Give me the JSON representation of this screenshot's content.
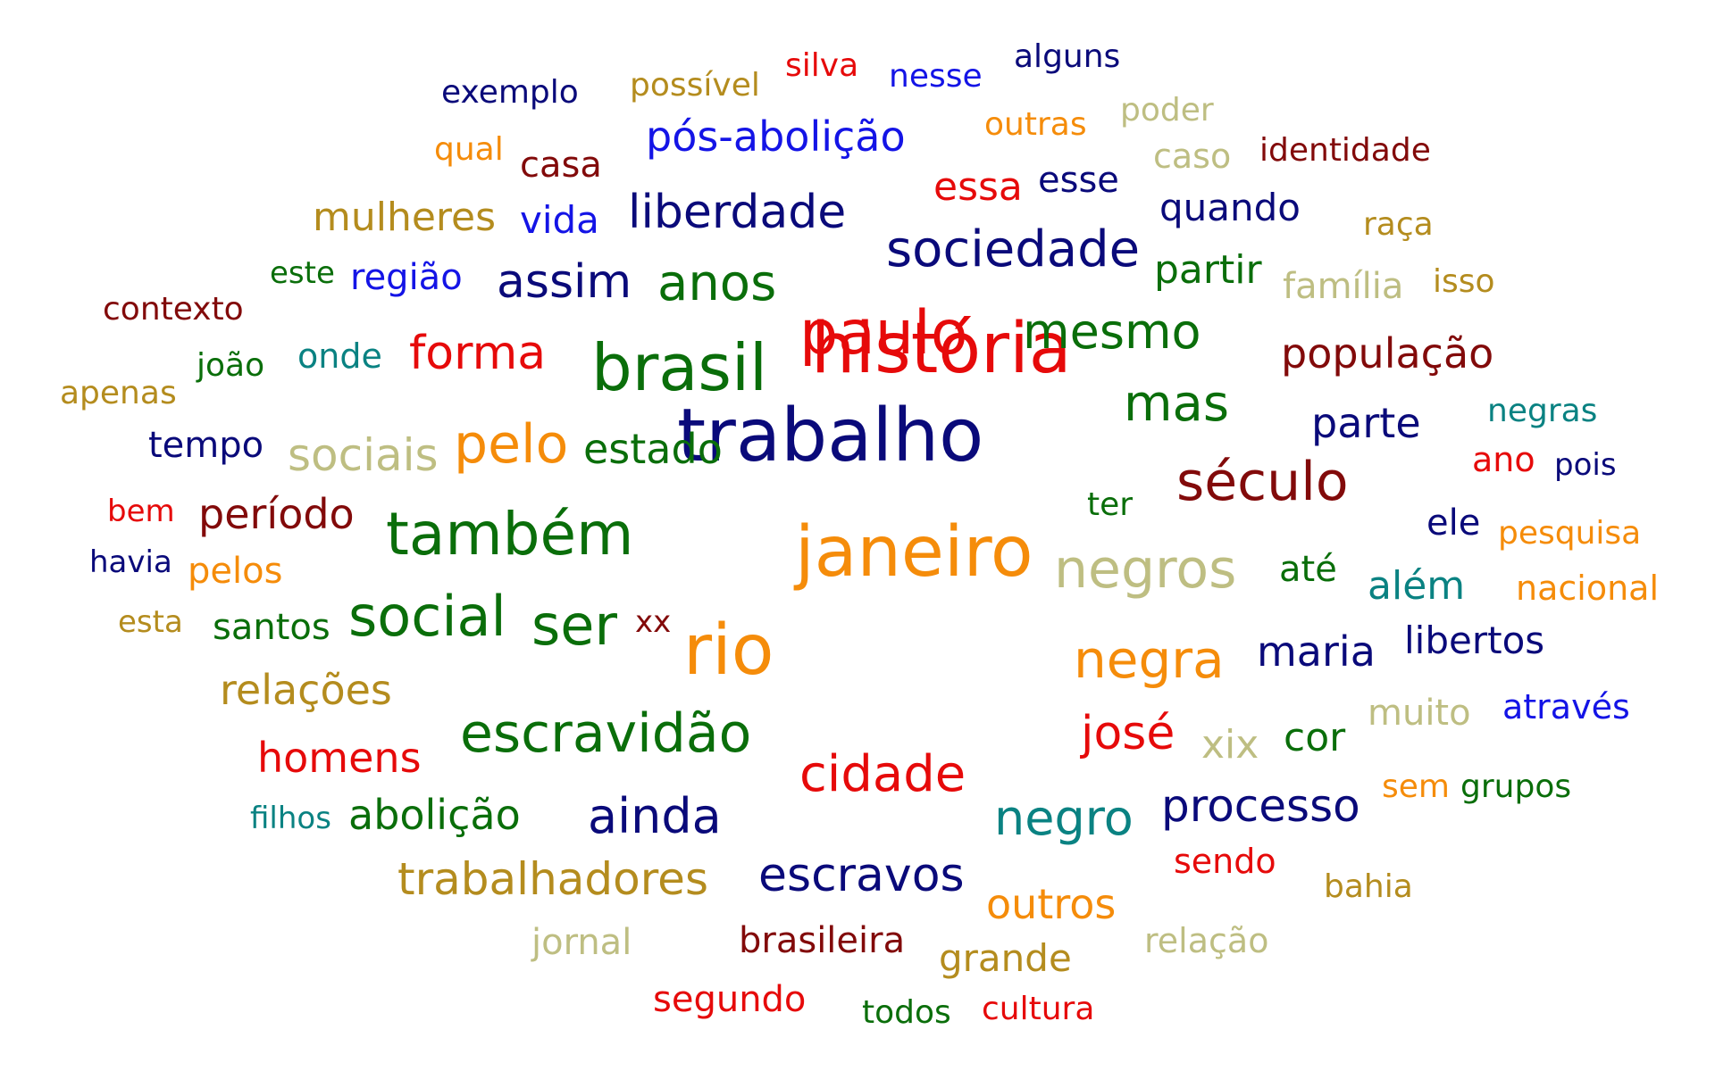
{
  "palette": {
    "navy": "#0a0a7a",
    "blue": "#1414e6",
    "red": "#e60a0a",
    "darkred": "#820a0a",
    "green": "#0a6e0a",
    "teal": "#0a8282",
    "orange": "#f58c0a",
    "gold": "#b48c1e",
    "khaki": "#bebe82"
  },
  "words": [
    {
      "text": "trabalho",
      "color": "navy"
    },
    {
      "text": "história",
      "color": "red"
    },
    {
      "text": "janeiro",
      "color": "orange"
    },
    {
      "text": "brasil",
      "color": "green"
    },
    {
      "text": "paulo",
      "color": "red"
    },
    {
      "text": "também",
      "color": "green"
    },
    {
      "text": "rio",
      "color": "orange"
    },
    {
      "text": "negros",
      "color": "khaki"
    },
    {
      "text": "século",
      "color": "darkred"
    },
    {
      "text": "escravidão",
      "color": "green"
    },
    {
      "text": "ser",
      "color": "green"
    },
    {
      "text": "negra",
      "color": "orange"
    },
    {
      "text": "sociedade",
      "color": "navy"
    },
    {
      "text": "mas",
      "color": "green"
    },
    {
      "text": "mesmo",
      "color": "green"
    },
    {
      "text": "social",
      "color": "green"
    },
    {
      "text": "cidade",
      "color": "red"
    },
    {
      "text": "negro",
      "color": "teal"
    },
    {
      "text": "ainda",
      "color": "navy"
    },
    {
      "text": "anos",
      "color": "green"
    },
    {
      "text": "pelo",
      "color": "orange"
    },
    {
      "text": "liberdade",
      "color": "navy"
    },
    {
      "text": "josé",
      "color": "red"
    },
    {
      "text": "processo",
      "color": "navy"
    },
    {
      "text": "trabalhadores",
      "color": "gold"
    },
    {
      "text": "escravos",
      "color": "navy"
    },
    {
      "text": "assim",
      "color": "navy"
    },
    {
      "text": "forma",
      "color": "red"
    },
    {
      "text": "população",
      "color": "darkred"
    },
    {
      "text": "parte",
      "color": "navy"
    },
    {
      "text": "maria",
      "color": "navy"
    },
    {
      "text": "estado",
      "color": "green"
    },
    {
      "text": "sociais",
      "color": "khaki"
    },
    {
      "text": "período",
      "color": "darkred"
    },
    {
      "text": "homens",
      "color": "red"
    },
    {
      "text": "relações",
      "color": "gold"
    },
    {
      "text": "abolição",
      "color": "green"
    },
    {
      "text": "pós-abolição",
      "color": "blue"
    },
    {
      "text": "partir",
      "color": "green"
    },
    {
      "text": "mulheres",
      "color": "gold"
    },
    {
      "text": "libertos",
      "color": "navy"
    },
    {
      "text": "quando",
      "color": "navy"
    },
    {
      "text": "outros",
      "color": "orange"
    },
    {
      "text": "além",
      "color": "teal"
    },
    {
      "text": "brasileira",
      "color": "darkred"
    },
    {
      "text": "grande",
      "color": "gold"
    },
    {
      "text": "cor",
      "color": "green"
    },
    {
      "text": "xix",
      "color": "khaki"
    },
    {
      "text": "essa",
      "color": "red"
    },
    {
      "text": "esse",
      "color": "navy"
    },
    {
      "text": "casa",
      "color": "darkred"
    },
    {
      "text": "vida",
      "color": "blue"
    },
    {
      "text": "região",
      "color": "blue"
    },
    {
      "text": "família",
      "color": "khaki"
    },
    {
      "text": "segundo",
      "color": "red"
    },
    {
      "text": "muito",
      "color": "khaki"
    },
    {
      "text": "através",
      "color": "blue"
    },
    {
      "text": "onde",
      "color": "teal"
    },
    {
      "text": "tempo",
      "color": "navy"
    },
    {
      "text": "pelos",
      "color": "orange"
    },
    {
      "text": "santos",
      "color": "green"
    },
    {
      "text": "identidade",
      "color": "darkred"
    },
    {
      "text": "relação",
      "color": "khaki"
    },
    {
      "text": "jornal",
      "color": "khaki"
    },
    {
      "text": "ele",
      "color": "navy"
    },
    {
      "text": "até",
      "color": "green"
    },
    {
      "text": "pesquisa",
      "color": "orange"
    },
    {
      "text": "nacional",
      "color": "orange"
    },
    {
      "text": "sendo",
      "color": "red"
    },
    {
      "text": "cultura",
      "color": "red"
    },
    {
      "text": "exemplo",
      "color": "navy"
    },
    {
      "text": "possível",
      "color": "gold"
    },
    {
      "text": "outras",
      "color": "orange"
    },
    {
      "text": "sem",
      "color": "orange"
    },
    {
      "text": "grupos",
      "color": "green"
    },
    {
      "text": "bahia",
      "color": "gold"
    },
    {
      "text": "negras",
      "color": "teal"
    },
    {
      "text": "nesse",
      "color": "blue"
    },
    {
      "text": "alguns",
      "color": "navy"
    },
    {
      "text": "poder",
      "color": "khaki"
    },
    {
      "text": "caso",
      "color": "khaki"
    },
    {
      "text": "raça",
      "color": "gold"
    },
    {
      "text": "isso",
      "color": "gold"
    },
    {
      "text": "contexto",
      "color": "darkred"
    },
    {
      "text": "joão",
      "color": "green"
    },
    {
      "text": "apenas",
      "color": "gold"
    },
    {
      "text": "ano",
      "color": "red"
    },
    {
      "text": "pois",
      "color": "navy"
    },
    {
      "text": "ter",
      "color": "green"
    },
    {
      "text": "bem",
      "color": "red"
    },
    {
      "text": "havia",
      "color": "navy"
    },
    {
      "text": "esta",
      "color": "gold"
    },
    {
      "text": "xx",
      "color": "darkred"
    },
    {
      "text": "filhos",
      "color": "teal"
    },
    {
      "text": "todos",
      "color": "green"
    },
    {
      "text": "silva",
      "color": "red"
    },
    {
      "text": "qual",
      "color": "orange"
    },
    {
      "text": "este",
      "color": "green"
    }
  ]
}
